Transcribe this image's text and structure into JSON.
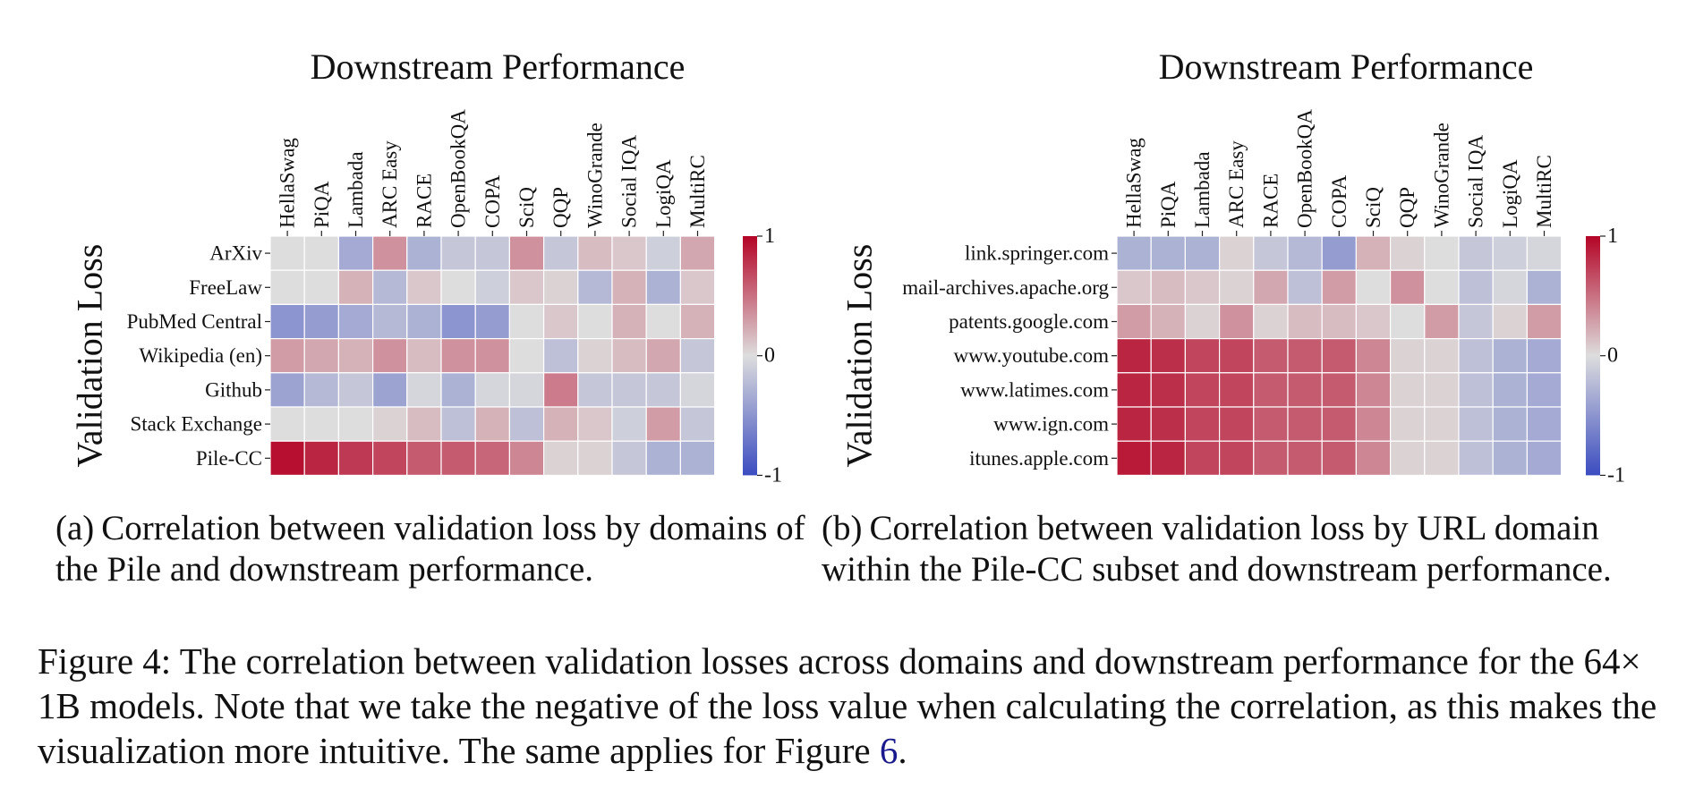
{
  "chart_data": [
    {
      "type": "heatmap",
      "title": "Downstream Performance",
      "ylabel": "Validation Loss",
      "columns": [
        "HellaSwag",
        "PiQA",
        "Lambada",
        "ARC Easy",
        "RACE",
        "OpenBookQA",
        "COPA",
        "SciQ",
        "QQP",
        "WinoGrande",
        "Social IQA",
        "LogiQA",
        "MultiRC"
      ],
      "rows": [
        "ArXiv",
        "FreeLaw",
        "PubMed Central",
        "Wikipedia (en)",
        "Github",
        "Stack Exchange",
        "Pile-CC"
      ],
      "values": [
        [
          0.0,
          0.0,
          -0.35,
          0.35,
          -0.3,
          -0.15,
          -0.15,
          0.35,
          -0.15,
          0.15,
          0.1,
          -0.1,
          0.25
        ],
        [
          0.0,
          0.0,
          0.2,
          -0.25,
          0.1,
          0.0,
          -0.1,
          0.1,
          0.05,
          -0.25,
          0.2,
          -0.3,
          0.1
        ],
        [
          -0.5,
          -0.45,
          -0.35,
          -0.25,
          -0.3,
          -0.5,
          -0.45,
          0.0,
          0.1,
          0.0,
          0.2,
          0.0,
          0.2
        ],
        [
          0.3,
          0.25,
          0.2,
          0.35,
          0.15,
          0.35,
          0.35,
          0.0,
          -0.2,
          0.05,
          0.15,
          0.25,
          -0.15
        ],
        [
          -0.4,
          -0.25,
          -0.15,
          -0.4,
          -0.05,
          -0.3,
          -0.05,
          -0.05,
          0.45,
          -0.15,
          -0.15,
          -0.15,
          -0.05
        ],
        [
          0.0,
          0.0,
          0.0,
          0.05,
          0.15,
          -0.2,
          0.2,
          -0.2,
          0.2,
          0.1,
          -0.1,
          0.3,
          -0.15
        ],
        [
          0.95,
          0.85,
          0.75,
          0.7,
          0.6,
          0.6,
          0.55,
          0.4,
          0.05,
          0.05,
          -0.15,
          -0.3,
          -0.3
        ]
      ],
      "colorbar": {
        "min": -1,
        "max": 1,
        "ticks": [
          "1",
          "0",
          "-1"
        ]
      },
      "colormap": {
        "low": "#3b4cc0",
        "mid": "#dddddd",
        "high": "#b40426"
      }
    },
    {
      "type": "heatmap",
      "title": "Downstream Performance",
      "ylabel": "Validation Loss",
      "columns": [
        "HellaSwag",
        "PiQA",
        "Lambada",
        "ARC Easy",
        "RACE",
        "OpenBookQA",
        "COPA",
        "SciQ",
        "QQP",
        "WinoGrande",
        "Social IQA",
        "LogiQA",
        "MultiRC"
      ],
      "rows": [
        "link.springer.com",
        "mail-archives.apache.org",
        "patents.google.com",
        "www.youtube.com",
        "www.latimes.com",
        "www.ign.com",
        "itunes.apple.com"
      ],
      "values": [
        [
          -0.3,
          -0.3,
          -0.3,
          0.05,
          -0.15,
          -0.25,
          -0.45,
          0.2,
          0.05,
          0.0,
          -0.15,
          -0.1,
          -0.05
        ],
        [
          0.1,
          0.15,
          0.1,
          0.05,
          0.25,
          -0.2,
          0.3,
          0.0,
          0.35,
          0.0,
          -0.2,
          -0.05,
          -0.3
        ],
        [
          0.3,
          0.2,
          0.05,
          0.35,
          0.05,
          0.15,
          0.15,
          0.1,
          0.0,
          0.3,
          -0.15,
          0.05,
          0.3
        ],
        [
          0.85,
          0.8,
          0.7,
          0.7,
          0.6,
          0.6,
          0.6,
          0.4,
          0.05,
          0.05,
          -0.2,
          -0.3,
          -0.35
        ],
        [
          0.85,
          0.8,
          0.7,
          0.7,
          0.6,
          0.6,
          0.6,
          0.4,
          0.05,
          0.05,
          -0.2,
          -0.3,
          -0.35
        ],
        [
          0.85,
          0.8,
          0.7,
          0.7,
          0.6,
          0.6,
          0.6,
          0.4,
          0.05,
          0.05,
          -0.2,
          -0.3,
          -0.35
        ],
        [
          0.9,
          0.85,
          0.7,
          0.7,
          0.6,
          0.6,
          0.6,
          0.4,
          0.05,
          0.05,
          -0.2,
          -0.3,
          -0.35
        ]
      ],
      "colorbar": {
        "min": -1,
        "max": 1,
        "ticks": [
          "1",
          "0",
          "-1"
        ]
      },
      "colormap": {
        "low": "#3b4cc0",
        "mid": "#dddddd",
        "high": "#b40426"
      }
    }
  ],
  "subcaptions": {
    "a": {
      "tag": "(a)",
      "text": "Correlation between validation loss by domains of the Pile and downstream performance."
    },
    "b": {
      "tag": "(b)",
      "text": "Correlation between validation loss by URL domain within the Pile-CC subset and downstream performance."
    }
  },
  "caption": {
    "text": "Figure 4: The correlation between validation losses across domains and downstream performance for the 64× 1B models. Note that we take the negative of the loss value when calculating the correlation, as this makes the visualization more intuitive. The same applies for Figure ",
    "ref": "6",
    "end": "."
  }
}
